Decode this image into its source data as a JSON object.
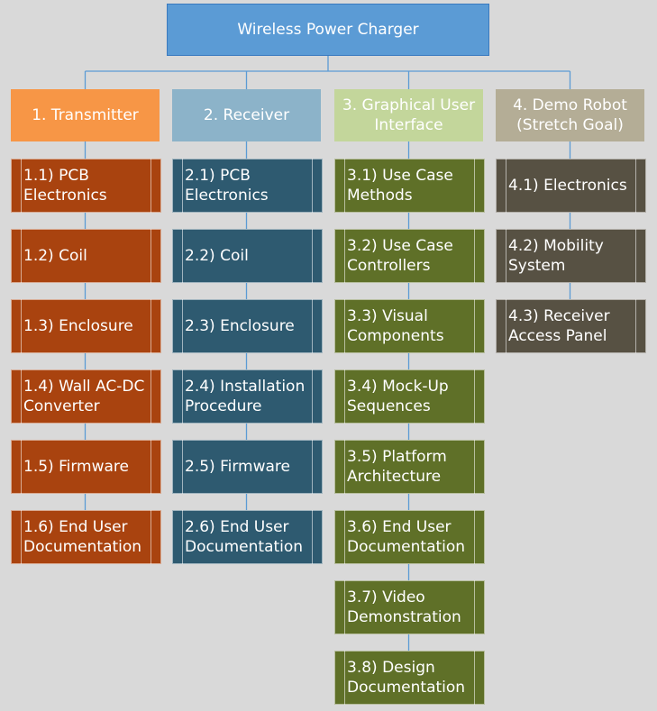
{
  "colors": {
    "background": "#d9d9d9",
    "connector": "#5b9bd5",
    "root": "#5b9bd5",
    "heads": [
      "#f79646",
      "#8cb3c9",
      "#c3d69b",
      "#b4ad96"
    ],
    "items": [
      "#a9430f",
      "#2e5a70",
      "#5f7028",
      "#575143"
    ]
  },
  "root": {
    "label": "Wireless Power Charger"
  },
  "columns": [
    {
      "head": "1. Transmitter",
      "items": [
        "1.1) PCB\nElectronics",
        "1.2) Coil",
        "1.3) Enclosure",
        "1.4) Wall AC-DC\nConverter",
        "1.5) Firmware",
        "1.6) End User\nDocumentation"
      ]
    },
    {
      "head": "2. Receiver",
      "items": [
        "2.1) PCB\nElectronics",
        "2.2) Coil",
        "2.3) Enclosure",
        "2.4) Installation\nProcedure",
        "2.5) Firmware",
        "2.6) End User\nDocumentation"
      ]
    },
    {
      "head": "3. Graphical User\nInterface",
      "items": [
        "3.1) Use Case\nMethods",
        "3.2) Use Case\nControllers",
        "3.3) Visual\nComponents",
        "3.4) Mock-Up\nSequences",
        "3.5) Platform\nArchitecture",
        "3.6) End User\nDocumentation",
        "3.7) Video\nDemonstration",
        "3.8) Design\nDocumentation"
      ]
    },
    {
      "head": "4. Demo Robot\n(Stretch Goal)",
      "items": [
        "4.1) Electronics",
        "4.2) Mobility\nSystem",
        "4.3) Receiver\nAccess Panel"
      ]
    }
  ]
}
